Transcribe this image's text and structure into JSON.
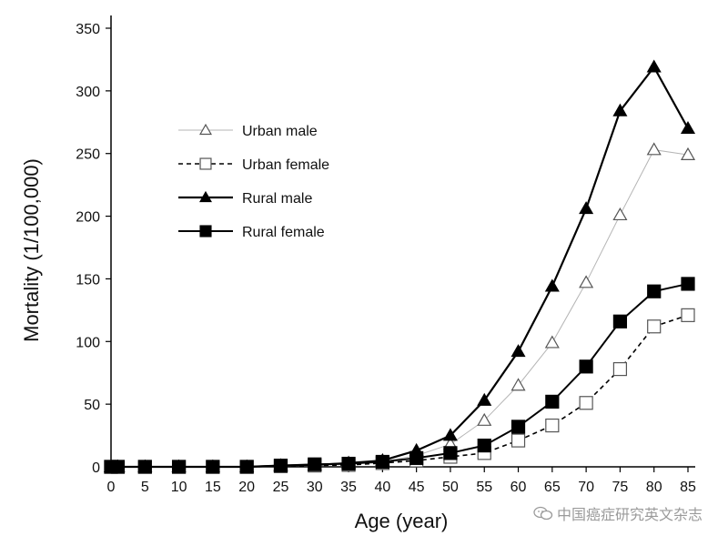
{
  "chart_data": {
    "type": "line",
    "title": "",
    "xlabel": "Age (year)",
    "ylabel": "Mortality (1/100,000)",
    "xlim": [
      0,
      85
    ],
    "ylim": [
      0,
      350
    ],
    "x": [
      0,
      1,
      5,
      10,
      15,
      20,
      25,
      30,
      35,
      40,
      45,
      50,
      55,
      60,
      65,
      70,
      75,
      80,
      85
    ],
    "x_ticks": [
      0,
      5,
      10,
      15,
      20,
      25,
      30,
      35,
      40,
      45,
      50,
      55,
      60,
      65,
      70,
      75,
      80,
      85
    ],
    "y_ticks": [
      0,
      50,
      100,
      150,
      200,
      250,
      300,
      350
    ],
    "legend_position": "upper-left",
    "series": [
      {
        "name": "Urban male",
        "marker": "triangle-open",
        "line": "solid-thin-gray",
        "values": [
          0,
          0,
          0,
          0,
          0,
          0,
          0.5,
          1,
          2,
          4,
          9,
          18,
          37,
          65,
          99,
          147,
          201,
          253,
          249
        ]
      },
      {
        "name": "Urban female",
        "marker": "square-open",
        "line": "dashed",
        "values": [
          0,
          0,
          0,
          0,
          0,
          0,
          0.5,
          1,
          1.5,
          3,
          5,
          8,
          11,
          21,
          33,
          51,
          78,
          112,
          121
        ]
      },
      {
        "name": "Rural male",
        "marker": "triangle-filled",
        "line": "solid-thick",
        "values": [
          0,
          0,
          0,
          0,
          0,
          0,
          1,
          1.5,
          3,
          5,
          13,
          25,
          53,
          92,
          144,
          206,
          284,
          319,
          270
        ]
      },
      {
        "name": "Rural female",
        "marker": "square-filled",
        "line": "solid",
        "values": [
          0,
          0,
          0,
          0,
          0,
          0,
          1,
          2,
          2.5,
          4,
          7,
          11,
          17,
          32,
          52,
          80,
          116,
          140,
          146
        ]
      }
    ]
  },
  "watermark": {
    "text": "中国癌症研究英文杂志",
    "icon": "wechat-icon"
  }
}
